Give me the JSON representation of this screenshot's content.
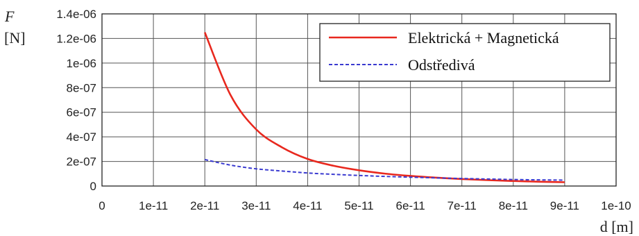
{
  "chart_data": {
    "type": "line",
    "title": "",
    "ylabel": "F",
    "ylabel_unit": "[N]",
    "xlabel": "d [m]",
    "xlim": [
      0,
      1e-10
    ],
    "ylim": [
      0,
      1.4e-06
    ],
    "x_ticks": [
      "0",
      "1e-11",
      "2e-11",
      "3e-11",
      "4e-11",
      "5e-11",
      "6e-11",
      "7e-11",
      "8e-11",
      "9e-11",
      "1e-10"
    ],
    "y_ticks": [
      "0",
      "2e-07",
      "4e-07",
      "6e-07",
      "8e-07",
      "1e-06",
      "1.2e-06",
      "1.4e-06"
    ],
    "grid": true,
    "legend_position": "top-right",
    "series": [
      {
        "name": "Elektrická + Magnetická",
        "color": "#e8281e",
        "style": "solid",
        "x": [
          2e-11,
          2.5e-11,
          3e-11,
          3.5e-11,
          4e-11,
          4.5e-11,
          5e-11,
          5.5e-11,
          6e-11,
          6.5e-11,
          7e-11,
          7.5e-11,
          8e-11,
          8.5e-11,
          9e-11
        ],
        "y": [
          1.25e-06,
          7.4e-07,
          4.6e-07,
          3.15e-07,
          2.2e-07,
          1.65e-07,
          1.28e-07,
          1.01e-07,
          8.2e-08,
          6.8e-08,
          5.7e-08,
          4.8e-08,
          4.1e-08,
          3.5e-08,
          3.1e-08
        ]
      },
      {
        "name": "Odstředivá",
        "color": "#3a3ad0",
        "style": "dashed",
        "x": [
          2e-11,
          2.5e-11,
          3e-11,
          3.5e-11,
          4e-11,
          4.5e-11,
          5e-11,
          5.5e-11,
          6e-11,
          6.5e-11,
          7e-11,
          7.5e-11,
          8e-11,
          8.5e-11,
          9e-11
        ],
        "y": [
          2.15e-07,
          1.7e-07,
          1.4e-07,
          1.22e-07,
          1.06e-07,
          9.5e-08,
          8.6e-08,
          7.8e-08,
          7.2e-08,
          6.6e-08,
          6.1e-08,
          5.7e-08,
          5.3e-08,
          5e-08,
          4.8e-08
        ]
      }
    ]
  }
}
